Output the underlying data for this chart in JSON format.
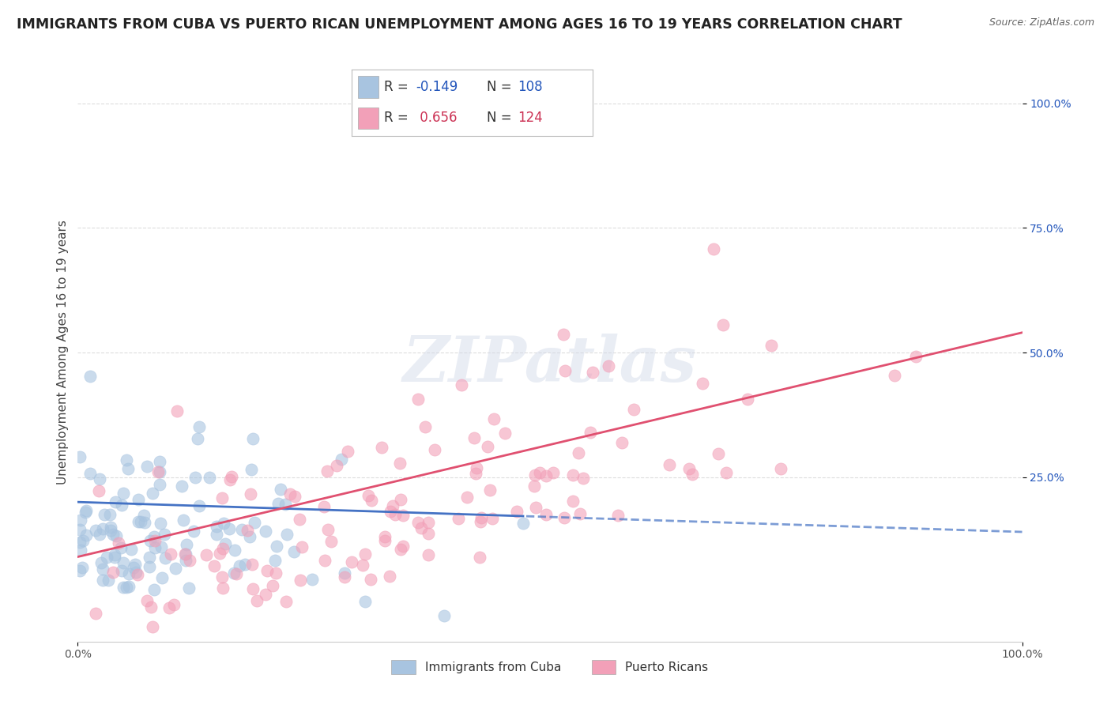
{
  "title": "IMMIGRANTS FROM CUBA VS PUERTO RICAN UNEMPLOYMENT AMONG AGES 16 TO 19 YEARS CORRELATION CHART",
  "source": "Source: ZipAtlas.com",
  "ylabel": "Unemployment Among Ages 16 to 19 years",
  "xlim": [
    0.0,
    1.0
  ],
  "ylim": [
    -0.08,
    1.08
  ],
  "x_tick_labels": [
    "0.0%",
    "100.0%"
  ],
  "y_tick_labels": [
    "25.0%",
    "50.0%",
    "75.0%",
    "100.0%"
  ],
  "y_ticks": [
    0.25,
    0.5,
    0.75,
    1.0
  ],
  "blue_R": -0.149,
  "blue_N": 108,
  "pink_R": 0.656,
  "pink_N": 124,
  "blue_color": "#a8c4e0",
  "pink_color": "#f2a0b8",
  "blue_line_color": "#4472c4",
  "pink_line_color": "#e05070",
  "legend_label_blue": "Immigrants from Cuba",
  "legend_label_pink": "Puerto Ricans",
  "watermark": "ZIPatlas",
  "background_color": "#ffffff",
  "grid_color": "#dddddd",
  "title_fontsize": 12.5,
  "axis_label_fontsize": 11,
  "tick_fontsize": 10,
  "legend_fontsize": 12,
  "blue_text_color": "#2255bb",
  "pink_text_color": "#cc3355",
  "seed": 7
}
